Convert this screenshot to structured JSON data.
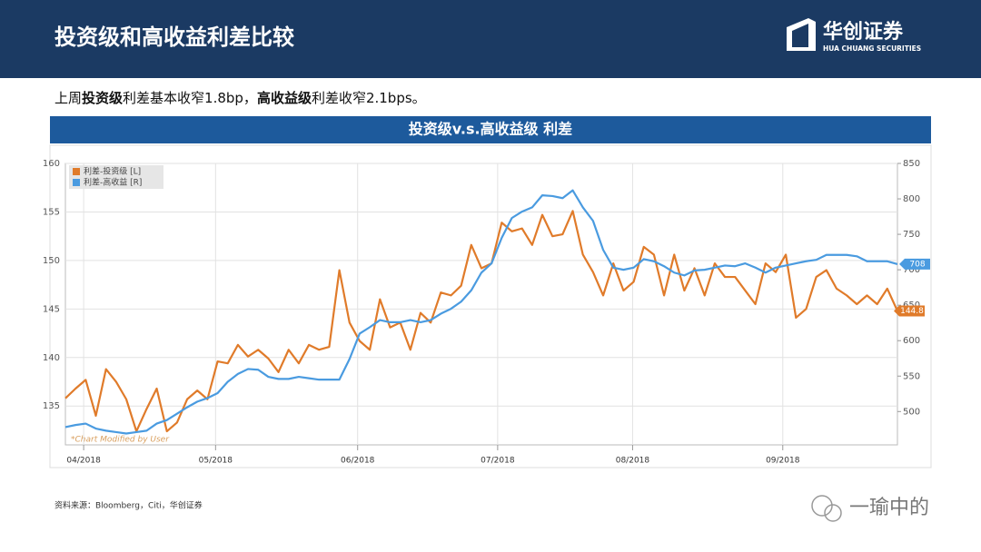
{
  "header": {
    "title": "投资级和高收益利差比较",
    "logo_cn": "华创证券",
    "logo_en": "HUA CHUANG SECURITIES"
  },
  "summary": [
    "上周",
    "投资级",
    "利差基本收窄1.8bp，",
    "高收益级",
    "利差收窄2.1bps。"
  ],
  "chart_data": {
    "type": "line",
    "title": "投资级v.s.高收益级 利差",
    "annotation": "*Chart Modified by User",
    "xlim": [
      0,
      82
    ],
    "xticks": [
      {
        "value": 1.8,
        "label": "04/2018"
      },
      {
        "value": 14.8,
        "label": "05/2018"
      },
      {
        "value": 28.8,
        "label": "06/2018"
      },
      {
        "value": 42.6,
        "label": "07/2018"
      },
      {
        "value": 55.9,
        "label": "08/2018"
      },
      {
        "value": 70.7,
        "label": "09/2018"
      }
    ],
    "ylim": [
      131,
      160
    ],
    "yticks": [
      135,
      140,
      145,
      150,
      155,
      160
    ],
    "y2lim": [
      453,
      850
    ],
    "y2ticks": [
      500,
      550,
      600,
      650,
      700,
      750,
      800,
      850
    ],
    "grid": true,
    "legend": "upper left",
    "series": [
      {
        "name": "利差-投资级 [L]",
        "color": "#e07b2a",
        "values": [
          135.8,
          136.8,
          137.7,
          134.0,
          138.8,
          137.5,
          135.7,
          132.4,
          134.7,
          136.8,
          132.4,
          133.3,
          135.7,
          136.6,
          135.7,
          139.6,
          139.4,
          141.3,
          140.1,
          140.8,
          139.9,
          138.5,
          140.8,
          139.4,
          141.3,
          140.8,
          141.1,
          149.0,
          143.6,
          141.7,
          140.8,
          146.0,
          143.1,
          143.6,
          140.8,
          144.6,
          143.6,
          146.7,
          146.4,
          147.4,
          151.6,
          149.2,
          149.7,
          153.9,
          153.0,
          153.3,
          151.6,
          154.7,
          152.5,
          152.7,
          155.1,
          150.6,
          148.8,
          146.4,
          149.7,
          146.9,
          147.8,
          151.4,
          150.6,
          146.4,
          150.6,
          146.9,
          149.2,
          146.4,
          149.7,
          148.3,
          148.3,
          146.9,
          145.5,
          149.7,
          148.8,
          150.6,
          144.1,
          145.0,
          148.3,
          149.0,
          147.1,
          146.4,
          145.5,
          146.4,
          145.5,
          147.1,
          144.8
        ]
      },
      {
        "name": "利差-高收益 [R]",
        "color": "#4a9be0",
        "axis": "y2",
        "values": [
          478,
          481,
          483,
          476,
          473,
          471,
          469,
          471,
          473,
          483,
          488,
          497,
          506,
          514,
          519,
          526,
          542,
          553,
          560,
          559,
          549,
          546,
          546,
          549,
          547,
          545,
          545,
          545,
          574,
          610,
          619,
          629,
          626,
          626,
          629,
          626,
          629,
          638,
          645,
          655,
          671,
          696,
          709,
          745,
          773,
          782,
          788,
          805,
          804,
          801,
          812,
          788,
          769,
          728,
          703,
          700,
          703,
          715,
          712,
          705,
          696,
          692,
          699,
          700,
          703,
          706,
          705,
          709,
          703,
          696,
          703,
          706,
          709,
          712,
          714,
          721,
          721,
          721,
          719,
          712,
          712,
          712,
          708
        ]
      }
    ]
  },
  "source": "资料来源：Bloomberg，Citi，华创证券",
  "watermark": "一瑜中的"
}
